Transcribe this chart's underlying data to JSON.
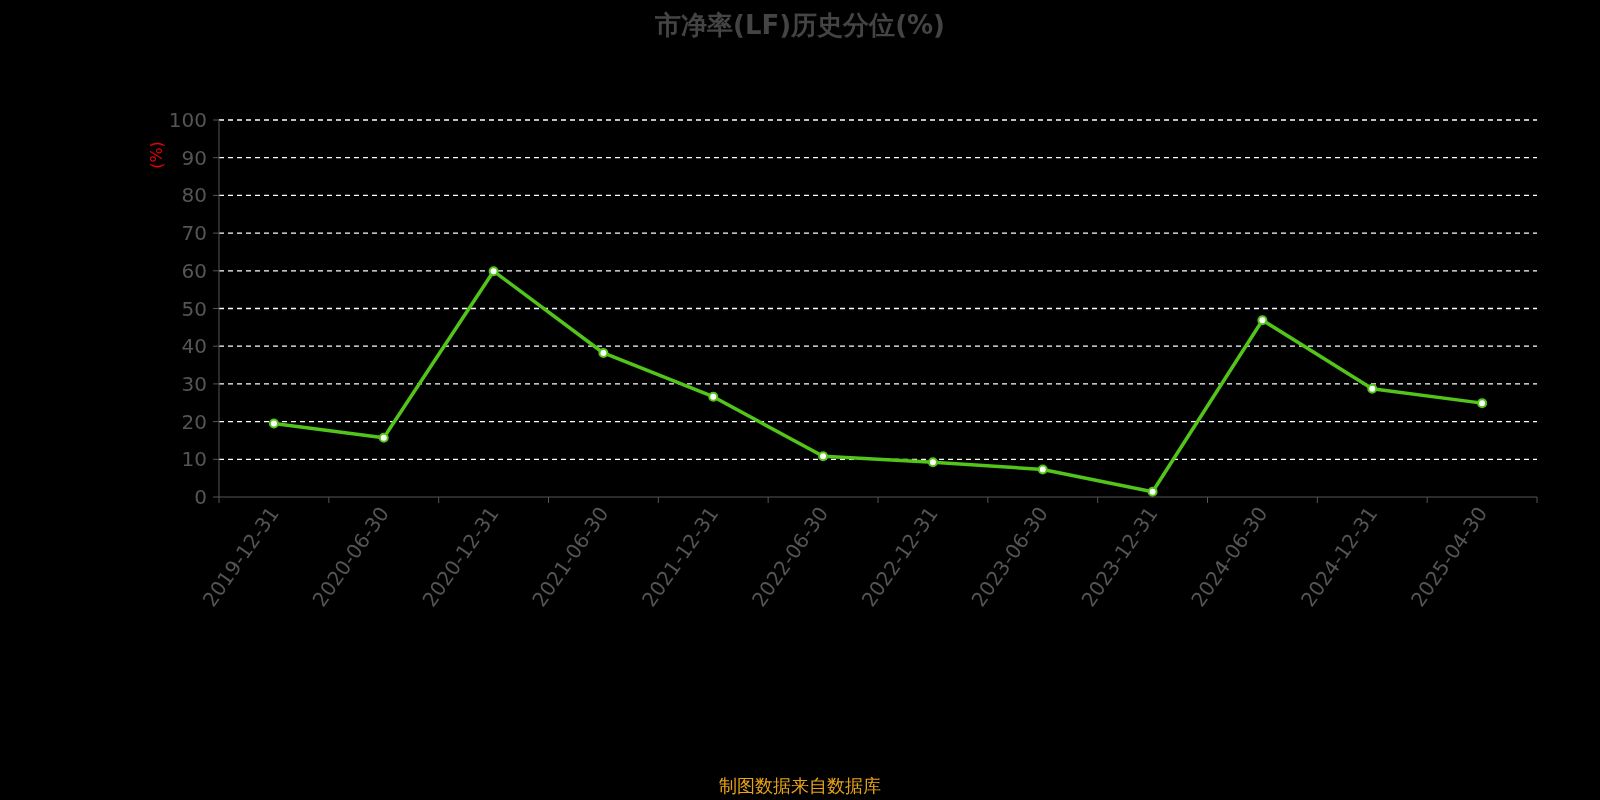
{
  "chart_data": {
    "type": "line",
    "title": "市净率(LF)历史分位(%)",
    "ylabel": "(%)",
    "categories": [
      "2019-12-31",
      "2020-06-30",
      "2020-12-31",
      "2021-06-30",
      "2021-12-31",
      "2022-06-30",
      "2022-12-31",
      "2023-06-30",
      "2023-12-31",
      "2024-06-30",
      "2024-12-31",
      "2025-04-30"
    ],
    "series": [
      {
        "color": "#52c41a",
        "values": [
          19.5,
          15.7,
          59.9,
          38.2,
          26.6,
          10.8,
          9.2,
          7.3,
          1.4,
          46.9,
          28.7,
          24.9
        ]
      }
    ],
    "ylim": [
      0,
      100
    ],
    "yticks": [
      0,
      10,
      20,
      30,
      40,
      50,
      60,
      70,
      80,
      90,
      100
    ],
    "grid": "y",
    "marker": "circle",
    "line_style": "solid",
    "annotations": [
      "制图数据来自数据库"
    ]
  }
}
